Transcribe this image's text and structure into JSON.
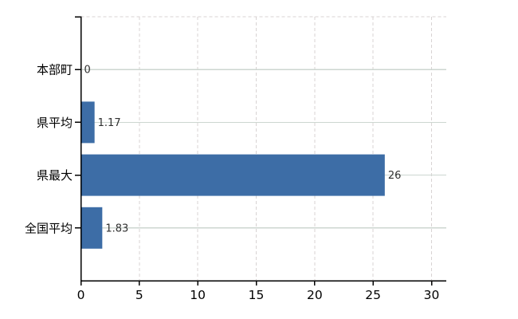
{
  "chart_data": {
    "type": "bar",
    "orientation": "horizontal",
    "title": "",
    "xlabel": "",
    "ylabel": "",
    "categories": [
      "本部町",
      "県平均",
      "県最大",
      "全国平均"
    ],
    "values": [
      0,
      1.17,
      26,
      1.83
    ],
    "value_labels": [
      "0",
      "1.17",
      "26",
      "1.83"
    ],
    "x_ticks": [
      0,
      5,
      10,
      15,
      20,
      25,
      30
    ],
    "x_tick_labels": [
      "0",
      "5",
      "10",
      "15",
      "20",
      "25",
      "30"
    ],
    "xlim": [
      0,
      31.3
    ],
    "legend": "none",
    "grid": {
      "vertical": "dashed",
      "horizontal": "solid",
      "top_border": "dashed"
    },
    "colors": {
      "bar": "#3d6da6",
      "axis": "#000000",
      "category_label": "#000000",
      "tick_label": "#000000",
      "value_label": "#303030",
      "h_gridline": "#cdd6d0",
      "v_gridline": "#d8d3d3",
      "background": "#ffffff"
    }
  }
}
